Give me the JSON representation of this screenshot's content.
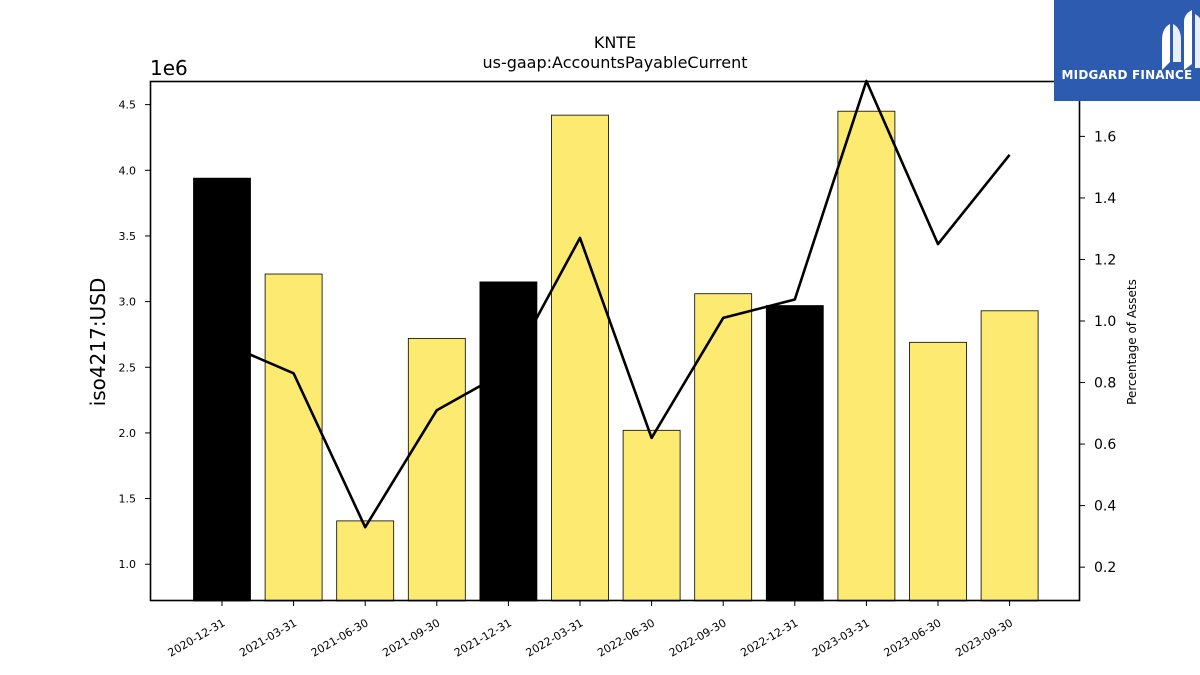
{
  "brand": {
    "name": "MIDGARD FINANCE",
    "icon": "mf-monogram-icon",
    "bg_color": "#2d5bb0"
  },
  "chart_data": {
    "type": "bar",
    "title": "KNTE",
    "subtitle": "us-gaap:AccountsPayableCurrent",
    "ylabel": "iso4217:USD",
    "y2label": "Percentage of Assets",
    "y_offset_label": "1e6",
    "categories": [
      "2020-12-31",
      "2021-03-31",
      "2021-06-30",
      "2021-09-30",
      "2021-12-31",
      "2022-03-31",
      "2022-06-30",
      "2022-09-30",
      "2022-12-31",
      "2023-03-31",
      "2023-06-30",
      "2023-09-30"
    ],
    "values": [
      3.94,
      3.21,
      1.33,
      2.72,
      3.15,
      4.42,
      2.02,
      3.06,
      2.97,
      4.45,
      2.69,
      2.93
    ],
    "bar_colors": [
      "#000000",
      "#fdeb71",
      "#fdeb71",
      "#fdeb71",
      "#000000",
      "#fdeb71",
      "#fdeb71",
      "#fdeb71",
      "#000000",
      "#fdeb71",
      "#fdeb71",
      "#fdeb71"
    ],
    "line_series": {
      "values": [
        0.93,
        0.83,
        0.33,
        0.71,
        0.84,
        1.27,
        0.62,
        1.01,
        1.07,
        1.78,
        1.25,
        1.54
      ],
      "color": "#000000"
    },
    "ylim": [
      0.72,
      4.68
    ],
    "y2lim": [
      0.09,
      1.78
    ],
    "yticks": [
      1.0,
      1.5,
      2.0,
      2.5,
      3.0,
      3.5,
      4.0,
      4.5
    ],
    "y2ticks": [
      0.2,
      0.4,
      0.6,
      0.8,
      1.0,
      1.2,
      1.4,
      1.6
    ],
    "grid": false
  }
}
